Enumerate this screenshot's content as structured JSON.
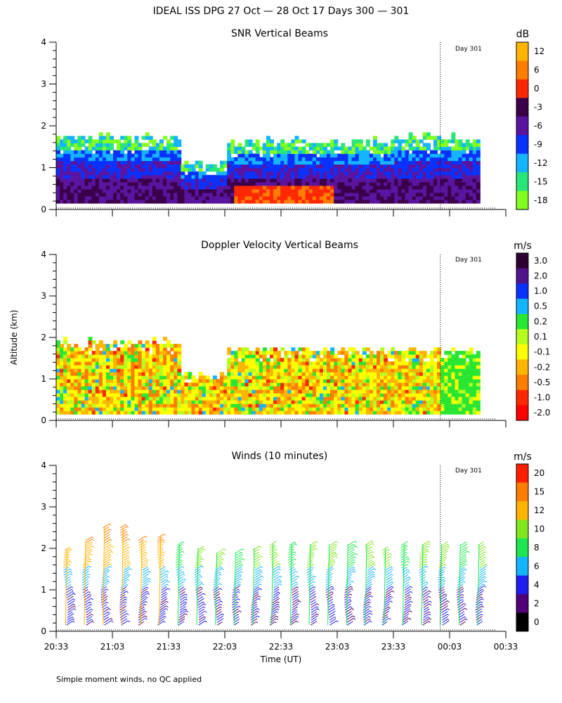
{
  "figure": {
    "title": "IDEAL ISS DPG  27 Oct — 28 Oct 17 Days 300 — 301",
    "ylabel": "Altitude (km)",
    "xlabel": "Time (UT)",
    "footnote": "Simple moment winds, no QC applied",
    "day_marker_label": "Day 301",
    "x_tick_labels": [
      "20:33",
      "21:03",
      "21:33",
      "22:03",
      "22:33",
      "23:03",
      "23:33",
      "00:03",
      "00:33"
    ],
    "y_tick_labels": [
      "0",
      "1",
      "2",
      "3",
      "4"
    ]
  },
  "chart_data": [
    {
      "type": "heatmap",
      "title": "SNR Vertical Beams",
      "units": "dB",
      "x_range": [
        "20:33",
        "00:33"
      ],
      "y_range_km": [
        0,
        4
      ],
      "day_marker_time": "23:58",
      "colorbar": {
        "labels": [
          "12",
          "6",
          "0",
          "-3",
          "-6",
          "-9",
          "-12",
          "-15",
          "-18"
        ],
        "colors": [
          "#ffb400",
          "#ff7d00",
          "#ff2800",
          "#3c004b",
          "#5a14a0",
          "#0a32ff",
          "#14b4ff",
          "#28e678",
          "#82ff1e"
        ]
      },
      "echo_segments": [
        {
          "start": "20:33",
          "end": "21:38",
          "top_km": 1.6
        },
        {
          "start": "21:38",
          "end": "22:03",
          "top_km": 1.0
        },
        {
          "start": "22:03",
          "end": "23:33",
          "top_km": 1.5
        },
        {
          "start": "23:33",
          "end": "00:18",
          "top_km": 1.6
        }
      ]
    },
    {
      "type": "heatmap",
      "title": "Doppler Velocity Vertical Beams",
      "units": "m/s",
      "x_range": [
        "20:33",
        "00:33"
      ],
      "y_range_km": [
        0,
        4
      ],
      "day_marker_time": "23:58",
      "colorbar": {
        "labels": [
          "3.0",
          "2.0",
          "1.0",
          "0.5",
          "0.2",
          "0.1",
          "-0.1",
          "-0.2",
          "-0.5",
          "-1.0",
          "-2.0"
        ],
        "colors": [
          "#2d0032",
          "#50148c",
          "#0a32ff",
          "#14b4ff",
          "#28e632",
          "#b4ff1e",
          "#ffff00",
          "#ffb400",
          "#ff7d00",
          "#ff2800",
          "#ff0000"
        ]
      },
      "echo_segments": [
        {
          "start": "20:33",
          "end": "21:38",
          "top_km": 1.8
        },
        {
          "start": "21:38",
          "end": "22:03",
          "top_km": 1.0
        },
        {
          "start": "22:03",
          "end": "23:33",
          "top_km": 1.6
        },
        {
          "start": "23:33",
          "end": "00:18",
          "top_km": 1.6
        }
      ]
    },
    {
      "type": "scatter",
      "title": "Winds (10 minutes)",
      "units": "m/s",
      "x_range": [
        "20:33",
        "00:33"
      ],
      "y_range_km": [
        0,
        4
      ],
      "day_marker_time": "23:58",
      "profile_times": [
        "20:38",
        "20:48",
        "20:58",
        "21:08",
        "21:18",
        "21:28",
        "21:38",
        "21:48",
        "21:58",
        "22:08",
        "22:18",
        "22:28",
        "22:38",
        "22:48",
        "22:58",
        "23:08",
        "23:18",
        "23:28",
        "23:38",
        "23:48",
        "23:58",
        "00:08",
        "00:18"
      ],
      "profile_top_km": [
        2.0,
        2.2,
        2.5,
        2.5,
        2.2,
        2.3,
        2.1,
        2.0,
        1.9,
        1.9,
        2.0,
        2.1,
        2.1,
        2.1,
        2.1,
        2.1,
        2.1,
        2.0,
        2.1,
        2.1,
        2.1,
        2.1,
        2.1
      ],
      "colorbar": {
        "labels": [
          "20",
          "15",
          "12",
          "10",
          "8",
          "6",
          "4",
          "2",
          "0"
        ],
        "colors": [
          "#ff1e00",
          "#ff7d00",
          "#ffb400",
          "#82e61e",
          "#1ee650",
          "#14b4ff",
          "#1e1ef0",
          "#500078",
          "#000000"
        ]
      }
    }
  ]
}
